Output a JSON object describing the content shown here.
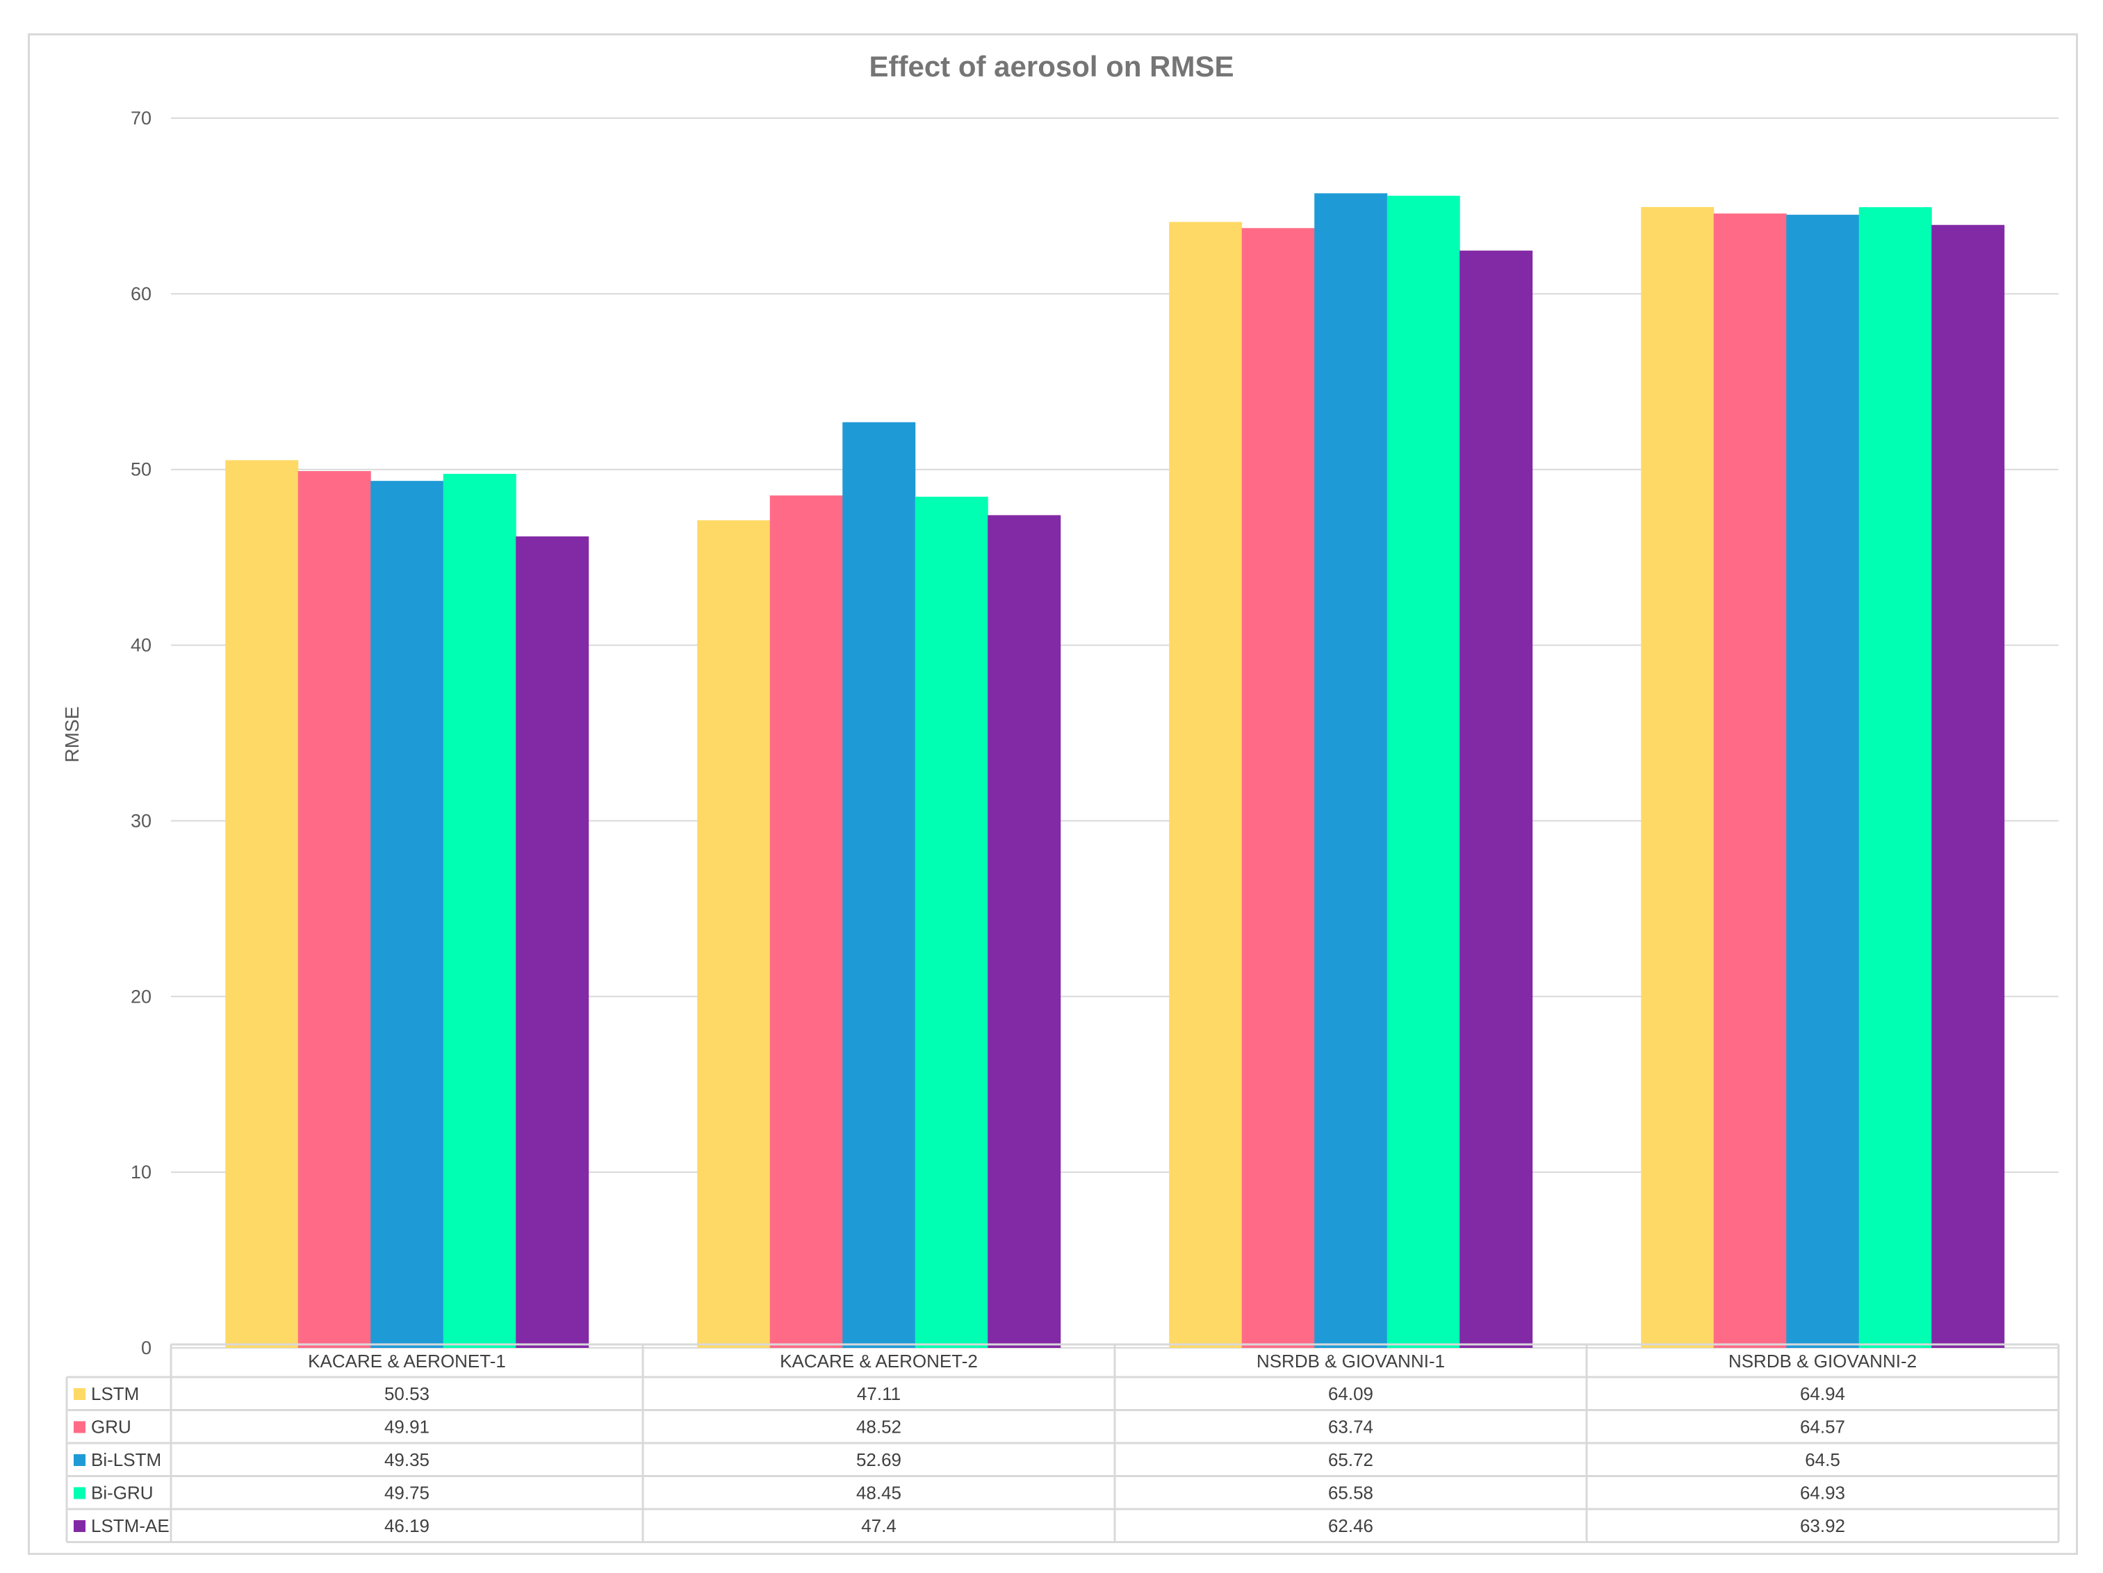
{
  "chart_data": {
    "type": "bar",
    "title": "Effect of aerosol on RMSE",
    "xlabel": "",
    "ylabel": "RMSE",
    "ylim": [
      0,
      70
    ],
    "yticks": [
      0,
      10,
      20,
      30,
      40,
      50,
      60,
      70
    ],
    "grid": true,
    "legend": "data-table-below",
    "categories": [
      "KACARE & AERONET-1",
      "KACARE & AERONET-2",
      "NSRDB & GIOVANNI-1",
      "NSRDB & GIOVANNI-2"
    ],
    "series": [
      {
        "name": "LSTM",
        "color": "#FFD966",
        "values": [
          50.53,
          47.11,
          64.09,
          64.94
        ],
        "labels": [
          "50.53",
          "47.11",
          "64.09",
          "64.94"
        ]
      },
      {
        "name": "GRU",
        "color": "#FF6B86",
        "values": [
          49.91,
          48.52,
          63.74,
          64.57
        ],
        "labels": [
          "49.91",
          "48.52",
          "63.74",
          "64.57"
        ]
      },
      {
        "name": "Bi-LSTM",
        "color": "#1E9BD7",
        "values": [
          49.35,
          52.69,
          65.72,
          64.5
        ],
        "labels": [
          "49.35",
          "52.69",
          "65.72",
          "64.5"
        ]
      },
      {
        "name": "Bi-GRU",
        "color": "#00FFB3",
        "values": [
          49.75,
          48.45,
          65.58,
          64.93
        ],
        "labels": [
          "49.75",
          "48.45",
          "65.58",
          "64.93"
        ]
      },
      {
        "name": "LSTM-AE",
        "color": "#8229A5",
        "values": [
          46.19,
          47.4,
          62.46,
          63.92
        ],
        "labels": [
          "46.19",
          "47.4",
          "62.46",
          "63.92"
        ]
      }
    ]
  }
}
